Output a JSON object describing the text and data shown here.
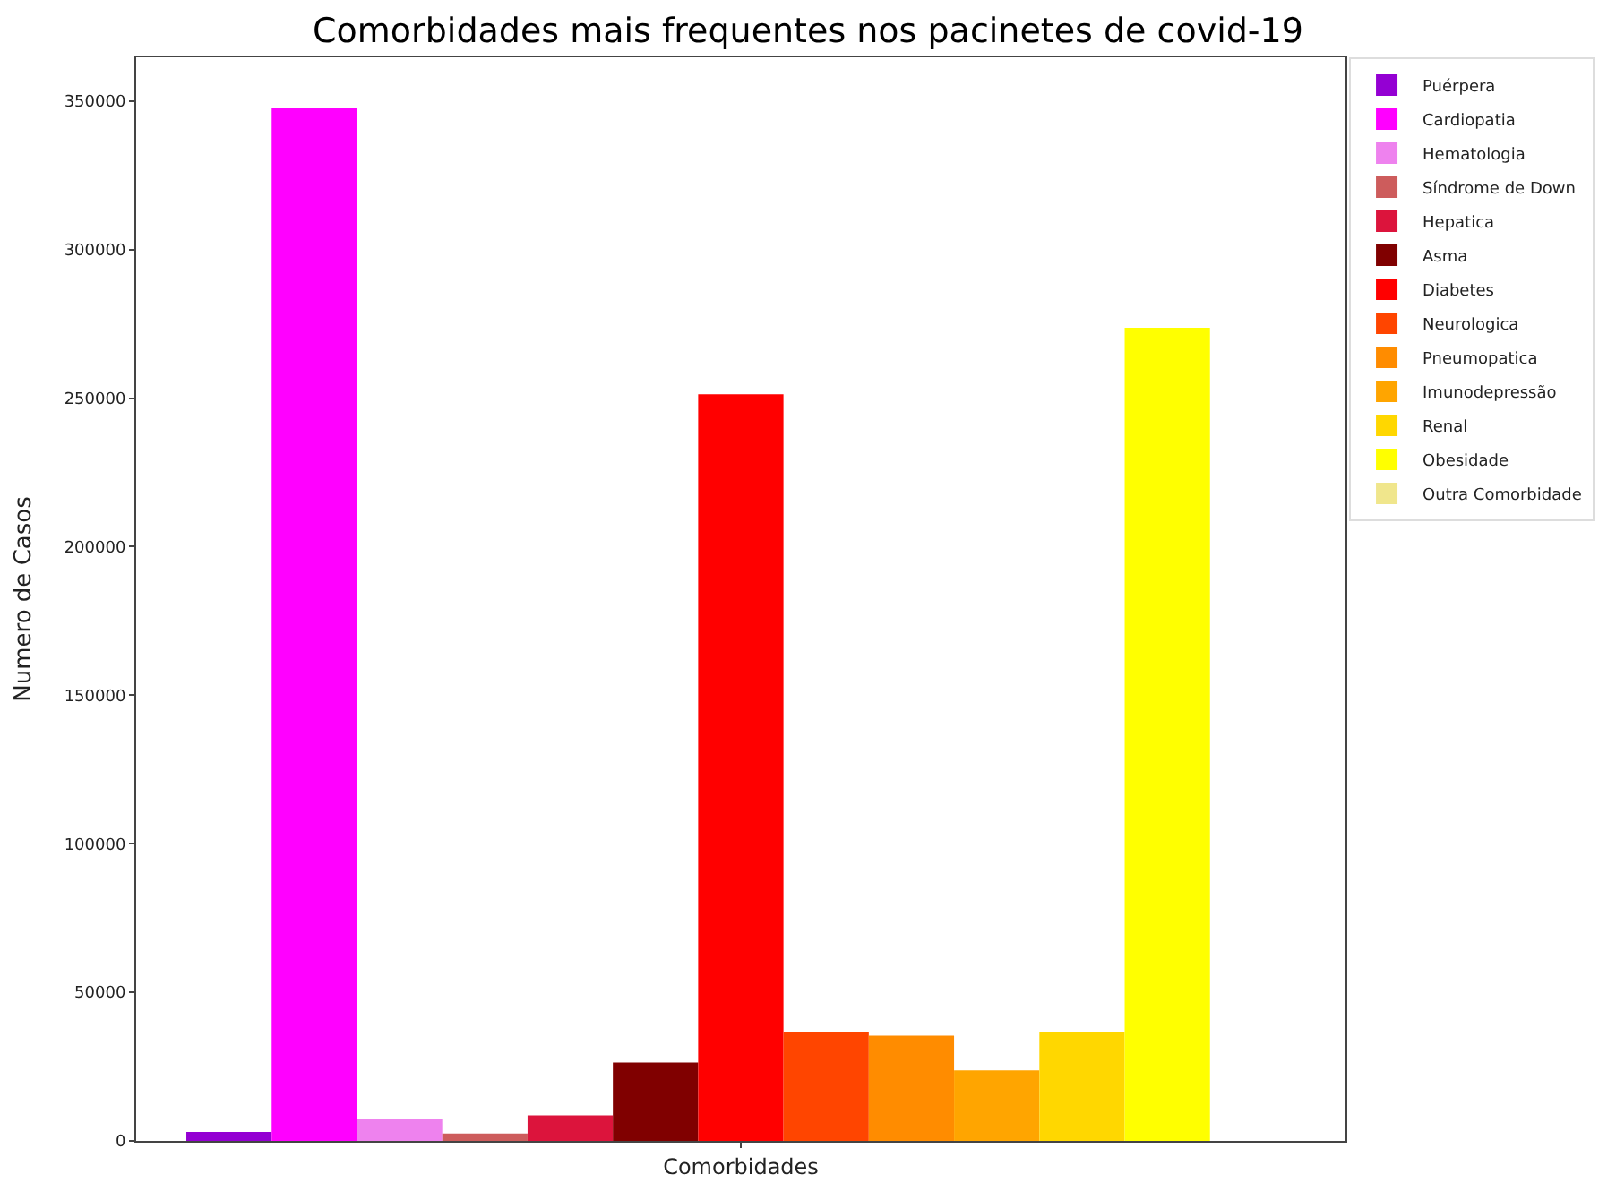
{
  "chart_data": {
    "type": "bar",
    "title": "Comorbidades mais frequentes nos pacinetes de covid-19",
    "ylabel": "Numero de Casos",
    "categories": [
      "Comorbidades"
    ],
    "series": [
      {
        "name": "Puérpera",
        "color": "#9400d3",
        "values": [
          3000
        ]
      },
      {
        "name": "Cardiopatia",
        "color": "#ff00ff",
        "values": [
          347500
        ]
      },
      {
        "name": "Hematologia",
        "color": "#ee82ee",
        "values": [
          7500
        ]
      },
      {
        "name": "Síndrome de Down",
        "color": "#cd5c5c",
        "values": [
          2500
        ]
      },
      {
        "name": "Hepatica",
        "color": "#dc143c",
        "values": [
          8600
        ]
      },
      {
        "name": "Asma",
        "color": "#800000",
        "values": [
          26400
        ]
      },
      {
        "name": "Diabetes",
        "color": "#ff0000",
        "values": [
          251300
        ]
      },
      {
        "name": "Neurologica",
        "color": "#ff4500",
        "values": [
          36800
        ]
      },
      {
        "name": "Pneumopatica",
        "color": "#ff8c00",
        "values": [
          35400
        ]
      },
      {
        "name": "Imunodepressão",
        "color": "#ffa500",
        "values": [
          23700
        ]
      },
      {
        "name": "Renal",
        "color": "#ffd700",
        "values": [
          36800
        ]
      },
      {
        "name": "Obesidade",
        "color": "#ffff00",
        "values": [
          273700
        ]
      },
      {
        "name": "Outra Comorbidade",
        "color": "#f0e68c",
        "values": [
          null
        ]
      }
    ],
    "ylim": [
      0,
      364700
    ],
    "yticks": [
      0,
      50000,
      100000,
      150000,
      200000,
      250000,
      300000,
      350000
    ],
    "legend": "top right"
  }
}
